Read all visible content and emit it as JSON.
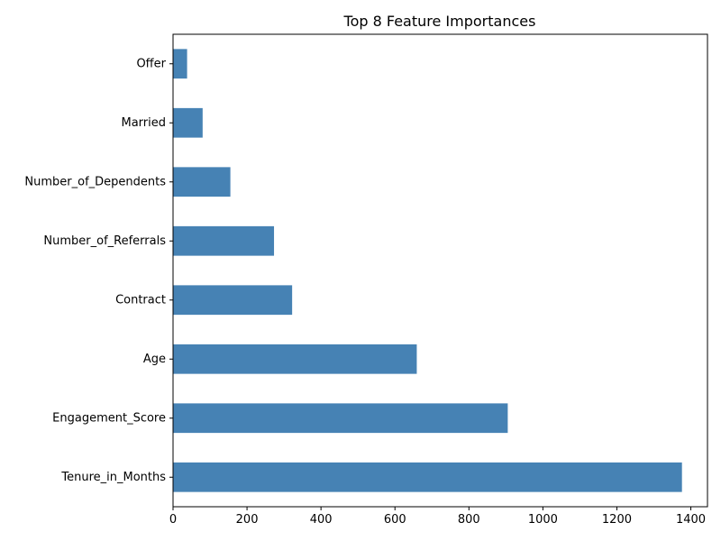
{
  "chart_data": {
    "type": "bar",
    "orientation": "horizontal",
    "title": "Top 8 Feature Importances",
    "xlabel": "",
    "ylabel": "",
    "categories": [
      "Offer",
      "Married",
      "Number_of_Dependents",
      "Number_of_Referrals",
      "Contract",
      "Age",
      "Engagement_Score",
      "Tenure_in_Months"
    ],
    "values": [
      38,
      80,
      155,
      273,
      322,
      659,
      905,
      1376
    ],
    "xlim": [
      0,
      1445
    ],
    "xticks": [
      0,
      200,
      400,
      600,
      800,
      1000,
      1200,
      1400
    ],
    "xtick_labels": [
      "0",
      "200",
      "400",
      "600",
      "800",
      "1000",
      "1200",
      "1400"
    ],
    "bar_color": "#4682b4",
    "grid": false,
    "legend": false
  }
}
